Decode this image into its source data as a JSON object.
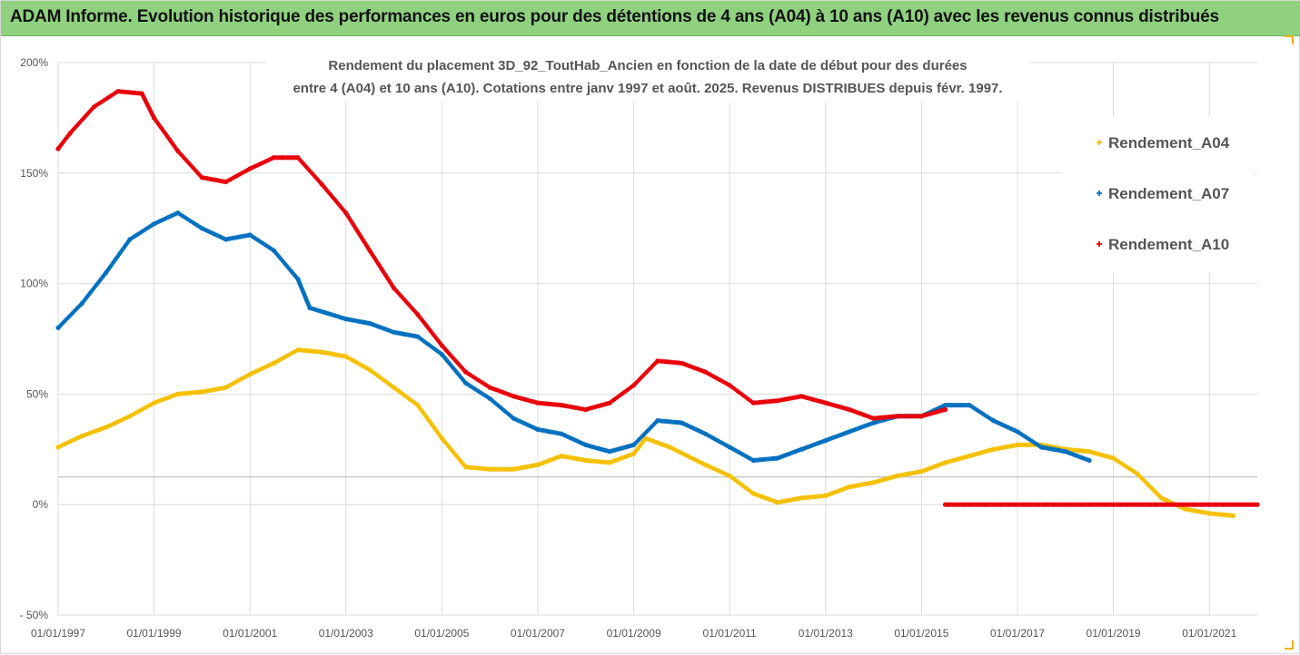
{
  "header": {
    "title": "ADAM Informe. Evolution historique des performances en euros pour des détentions de 4 ans (A04) à 10 ans (A10) avec les revenus connus distribués",
    "background": "#8fd17f"
  },
  "chart_data": {
    "type": "scatter",
    "title_lines": [
      "Rendement du placement 3D_92_ToutHab_Ancien en fonction de la date de début pour des durées",
      "entre 4 (A04) et 10 ans (A10). Cotations entre janv 1997 et août. 2025. Revenus DISTRIBUES depuis févr. 1997."
    ],
    "xlabel": "",
    "ylabel": "",
    "x_range": [
      "1997-01-01",
      "2022-01-01"
    ],
    "x_tick_labels": [
      "01/01/1997",
      "01/01/1999",
      "01/01/2001",
      "01/01/2003",
      "01/01/2005",
      "01/01/2007",
      "01/01/2009",
      "01/01/2011",
      "01/01/2013",
      "01/01/2015",
      "01/01/2017",
      "01/01/2019",
      "01/01/2021"
    ],
    "ylim": [
      -50,
      200
    ],
    "y_ticks": [
      -50,
      0,
      50,
      100,
      150,
      200
    ],
    "y_tick_labels": [
      "- 50%",
      "0%",
      "50%",
      "100%",
      "150%",
      "200%"
    ],
    "grid": true,
    "legend_position": "right",
    "series": [
      {
        "name": "Rendement_A04",
        "color": "#f5c000",
        "points": [
          [
            "1997-01-01",
            26
          ],
          [
            "1997-07-01",
            31
          ],
          [
            "1998-01-01",
            35
          ],
          [
            "1998-07-01",
            40
          ],
          [
            "1999-01-01",
            46
          ],
          [
            "1999-07-01",
            50
          ],
          [
            "2000-01-01",
            51
          ],
          [
            "2000-07-01",
            53
          ],
          [
            "2001-01-01",
            59
          ],
          [
            "2001-07-01",
            64
          ],
          [
            "2002-01-01",
            70
          ],
          [
            "2002-07-01",
            69
          ],
          [
            "2003-01-01",
            67
          ],
          [
            "2003-07-01",
            61
          ],
          [
            "2004-01-01",
            53
          ],
          [
            "2004-07-01",
            45
          ],
          [
            "2005-01-01",
            30
          ],
          [
            "2005-07-01",
            17
          ],
          [
            "2006-01-01",
            16
          ],
          [
            "2006-07-01",
            16
          ],
          [
            "2007-01-01",
            18
          ],
          [
            "2007-07-01",
            22
          ],
          [
            "2008-01-01",
            20
          ],
          [
            "2008-07-01",
            19
          ],
          [
            "2009-01-01",
            23
          ],
          [
            "2009-04-01",
            30
          ],
          [
            "2009-10-01",
            26
          ],
          [
            "2010-07-01",
            18
          ],
          [
            "2011-01-01",
            13
          ],
          [
            "2011-07-01",
            5
          ],
          [
            "2012-01-01",
            1
          ],
          [
            "2012-07-01",
            3
          ],
          [
            "2013-01-01",
            4
          ],
          [
            "2013-07-01",
            8
          ],
          [
            "2014-01-01",
            10
          ],
          [
            "2014-07-01",
            13
          ],
          [
            "2015-01-01",
            15
          ],
          [
            "2015-07-01",
            19
          ],
          [
            "2016-01-01",
            22
          ],
          [
            "2016-07-01",
            25
          ],
          [
            "2017-01-01",
            27
          ],
          [
            "2017-07-01",
            27
          ],
          [
            "2018-01-01",
            25
          ],
          [
            "2018-07-01",
            24
          ],
          [
            "2019-01-01",
            21
          ],
          [
            "2019-07-01",
            14
          ],
          [
            "2020-01-01",
            3
          ],
          [
            "2020-07-01",
            -2
          ],
          [
            "2021-01-01",
            -4
          ],
          [
            "2021-07-01",
            -5
          ]
        ]
      },
      {
        "name": "Rendement_A07",
        "color": "#0070c0",
        "points": [
          [
            "1997-01-01",
            80
          ],
          [
            "1997-07-01",
            91
          ],
          [
            "1998-01-01",
            105
          ],
          [
            "1998-07-01",
            120
          ],
          [
            "1999-01-01",
            127
          ],
          [
            "1999-07-01",
            132
          ],
          [
            "2000-01-01",
            125
          ],
          [
            "2000-07-01",
            120
          ],
          [
            "2001-01-01",
            122
          ],
          [
            "2001-07-01",
            115
          ],
          [
            "2002-01-01",
            102
          ],
          [
            "2002-04-01",
            89
          ],
          [
            "2003-01-01",
            84
          ],
          [
            "2003-07-01",
            82
          ],
          [
            "2004-01-01",
            78
          ],
          [
            "2004-07-01",
            76
          ],
          [
            "2005-01-01",
            68
          ],
          [
            "2005-07-01",
            55
          ],
          [
            "2006-01-01",
            48
          ],
          [
            "2006-07-01",
            39
          ],
          [
            "2007-01-01",
            34
          ],
          [
            "2007-07-01",
            32
          ],
          [
            "2008-01-01",
            27
          ],
          [
            "2008-07-01",
            24
          ],
          [
            "2009-01-01",
            27
          ],
          [
            "2009-07-01",
            38
          ],
          [
            "2010-01-01",
            37
          ],
          [
            "2010-07-01",
            32
          ],
          [
            "2011-01-01",
            26
          ],
          [
            "2011-07-01",
            20
          ],
          [
            "2012-01-01",
            21
          ],
          [
            "2012-07-01",
            25
          ],
          [
            "2013-01-01",
            29
          ],
          [
            "2013-07-01",
            33
          ],
          [
            "2014-01-01",
            37
          ],
          [
            "2014-07-01",
            40
          ],
          [
            "2015-01-01",
            40
          ],
          [
            "2015-07-01",
            45
          ],
          [
            "2016-01-01",
            45
          ],
          [
            "2016-07-01",
            38
          ],
          [
            "2017-01-01",
            33
          ],
          [
            "2017-07-01",
            26
          ],
          [
            "2018-01-01",
            24
          ],
          [
            "2018-07-01",
            20
          ]
        ]
      },
      {
        "name": "Rendement_A10",
        "color": "#e8000a",
        "points": [
          [
            "1997-01-01",
            161
          ],
          [
            "1997-04-01",
            168
          ],
          [
            "1997-10-01",
            180
          ],
          [
            "1998-04-01",
            187
          ],
          [
            "1998-10-01",
            186
          ],
          [
            "1999-01-01",
            175
          ],
          [
            "1999-07-01",
            160
          ],
          [
            "2000-01-01",
            148
          ],
          [
            "2000-07-01",
            146
          ],
          [
            "2001-01-01",
            152
          ],
          [
            "2001-07-01",
            157
          ],
          [
            "2002-01-01",
            157
          ],
          [
            "2002-07-01",
            145
          ],
          [
            "2003-01-01",
            132
          ],
          [
            "2003-07-01",
            115
          ],
          [
            "2004-01-01",
            98
          ],
          [
            "2004-07-01",
            86
          ],
          [
            "2005-01-01",
            72
          ],
          [
            "2005-07-01",
            60
          ],
          [
            "2006-01-01",
            53
          ],
          [
            "2006-07-01",
            49
          ],
          [
            "2007-01-01",
            46
          ],
          [
            "2007-07-01",
            45
          ],
          [
            "2008-01-01",
            43
          ],
          [
            "2008-07-01",
            46
          ],
          [
            "2009-01-01",
            54
          ],
          [
            "2009-07-01",
            65
          ],
          [
            "2010-01-01",
            64
          ],
          [
            "2010-07-01",
            60
          ],
          [
            "2011-01-01",
            54
          ],
          [
            "2011-07-01",
            46
          ],
          [
            "2012-01-01",
            47
          ],
          [
            "2012-07-01",
            49
          ],
          [
            "2013-01-01",
            46
          ],
          [
            "2013-07-01",
            43
          ],
          [
            "2014-01-01",
            39
          ],
          [
            "2014-07-01",
            40
          ],
          [
            "2015-01-01",
            40
          ],
          [
            "2015-07-01",
            43
          ]
        ]
      },
      {
        "name": "",
        "color": "#e8000a",
        "points": [
          [
            "2015-07-01",
            0
          ],
          [
            "2022-01-01",
            0
          ]
        ]
      }
    ]
  }
}
